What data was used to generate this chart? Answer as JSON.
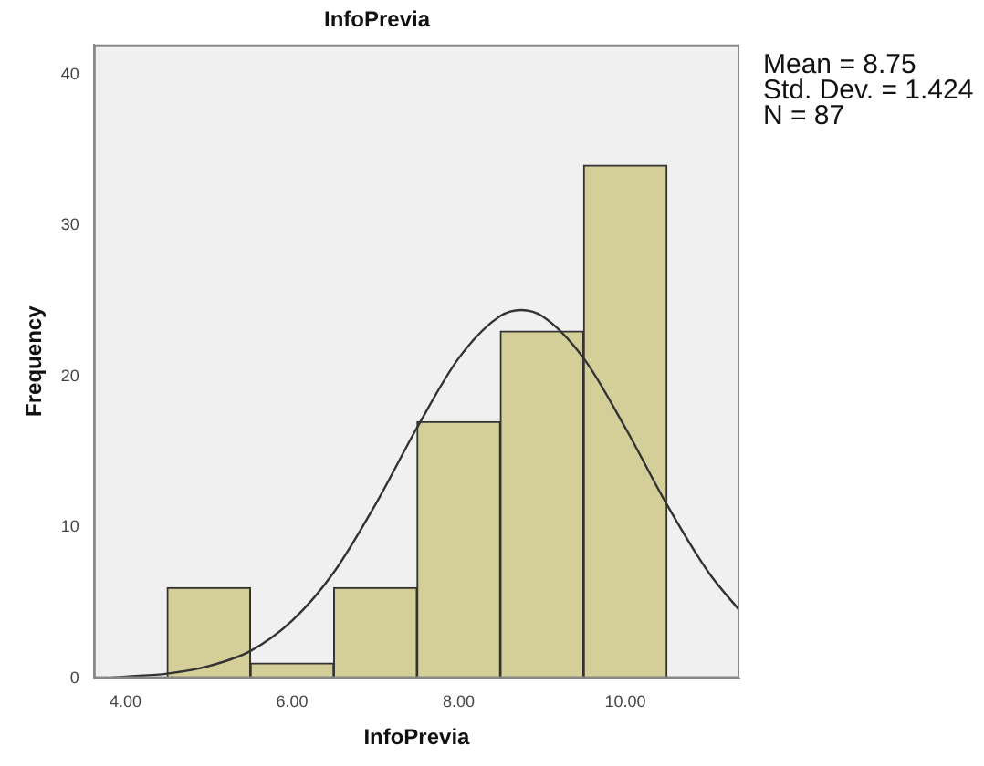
{
  "chart_data": {
    "type": "histogram",
    "title": "InfoPrevia",
    "xlabel": "InfoPrevia",
    "ylabel": "Frequency",
    "bins": [
      4.5,
      5.5,
      6.5,
      7.5,
      8.5,
      9.5,
      10.5
    ],
    "values": [
      6,
      1,
      6,
      17,
      23,
      34
    ],
    "color": "#d4cf98",
    "xlim": [
      3.62,
      11.37
    ],
    "xticks": [
      {
        "value": 4,
        "label": "4.00"
      },
      {
        "value": 6,
        "label": "6.00"
      },
      {
        "value": 8,
        "label": "8.00"
      },
      {
        "value": 10,
        "label": "10.00"
      }
    ],
    "ylim": [
      0,
      42
    ],
    "yticks": [
      0,
      10,
      20,
      30,
      40
    ],
    "grid": false,
    "legend": false,
    "series": [
      {
        "type": "line",
        "color": "#333333",
        "x": [
          3.75,
          4.0,
          4.5,
          5.0,
          5.5,
          6.0,
          6.5,
          7.0,
          7.5,
          8.0,
          8.5,
          8.75,
          9.0,
          9.5,
          10.0,
          10.5,
          11.0,
          11.37
        ],
        "values": [
          0,
          0.1,
          0.3,
          0.8,
          1.8,
          3.8,
          7,
          11.5,
          16.6,
          21.2,
          24,
          24.4,
          24,
          21.2,
          16.6,
          11.5,
          7,
          4.5
        ]
      }
    ],
    "annotations": [
      "Mean = 8.75",
      "Std. Dev. = 1.424",
      "N = 87"
    ]
  }
}
